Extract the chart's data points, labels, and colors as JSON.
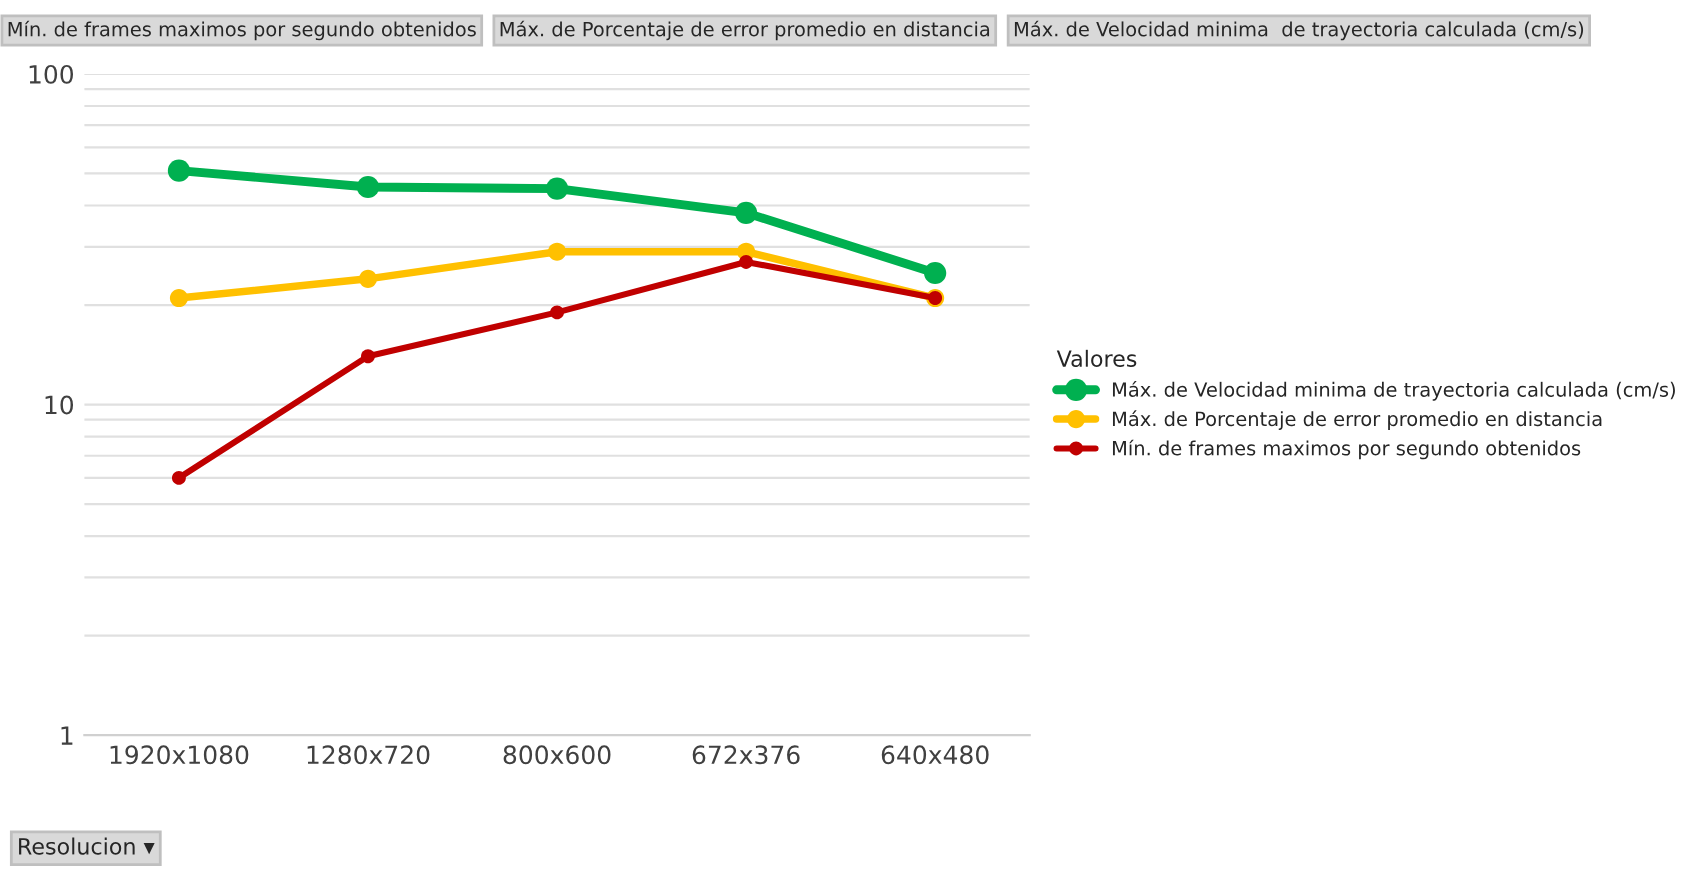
{
  "chart_data": {
    "type": "line",
    "categories": [
      "1920x1080",
      "1280x720",
      "800x600",
      "672x376",
      "640x480"
    ],
    "series": [
      {
        "name": "Máx. de Velocidad minima de trayectoria calculada (cm/s)",
        "color": "#00b050",
        "values": [
          51,
          45.5,
          45,
          38,
          25
        ]
      },
      {
        "name": "Máx. de Porcentaje de error promedio en distancia",
        "color": "#ffc000",
        "values": [
          21,
          24,
          29,
          29,
          21
        ]
      },
      {
        "name": "Mín. de frames maximos por segundo obtenidos",
        "color": "#c00000",
        "values": [
          6,
          14,
          19,
          27,
          21
        ]
      }
    ],
    "log": "y",
    "ylim": [
      1,
      100
    ],
    "yticks": [
      1,
      10,
      100
    ],
    "grid": "y",
    "legend": "right",
    "legend_title": "Valores",
    "marker": "circle",
    "line_style": "solid",
    "annotations": [
      "Mín. de frames maximos por segundo obtenidos",
      "Máx. de Porcentaje de error promedio en distancia",
      "Máx. de Velocidad minima  de trayectoria calculada (cm/s)",
      "Resolucion ▾"
    ]
  }
}
